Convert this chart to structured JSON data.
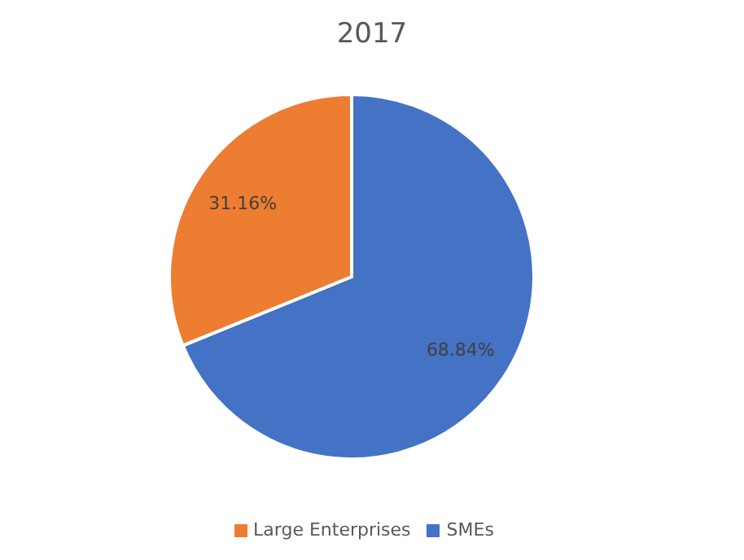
{
  "chart_data": {
    "type": "pie",
    "title": "2017",
    "categories": [
      "SMEs",
      "Large Enterprises"
    ],
    "values": [
      68.84,
      31.16
    ],
    "value_labels": [
      "68.84%",
      "31.16%"
    ],
    "colors": [
      "#4472c4",
      "#ed7d31"
    ],
    "legend": "bottom"
  }
}
